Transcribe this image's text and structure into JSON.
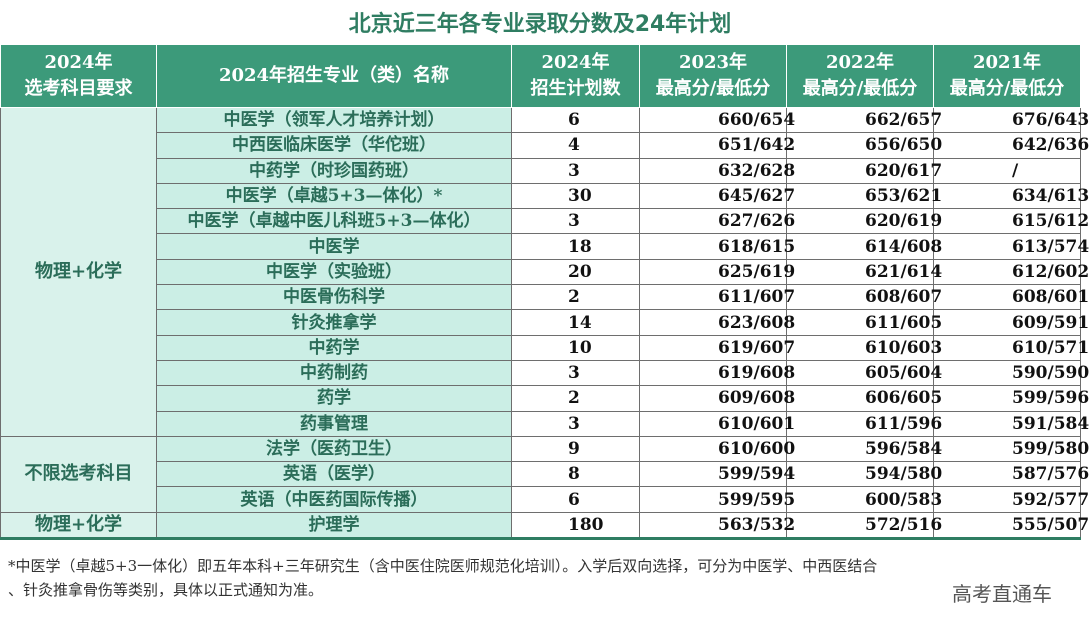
{
  "title": "北京近三年各专业录取分数及24年计划",
  "headers": {
    "col1": [
      "2024年",
      "选考科目要求"
    ],
    "col2": "2024年招生专业（类）名称",
    "col3": [
      "2024年",
      "招生计划数"
    ],
    "col4": [
      "2023年",
      "最高分/最低分"
    ],
    "col5": [
      "2022年",
      "最高分/最低分"
    ],
    "col6": [
      "2021年",
      "最高分/最低分"
    ]
  },
  "groups": [
    "物理+化学",
    "不限选考科目",
    "物理+化学"
  ],
  "rows": [
    {
      "major": "中医学（领军人才培养计划）",
      "plan": "6",
      "s2023": "660/654",
      "s2022": "662/657",
      "s2021": "676/643"
    },
    {
      "major": "中西医临床医学（华佗班）",
      "plan": "4",
      "s2023": "651/642",
      "s2022": "656/650",
      "s2021": "642/636"
    },
    {
      "major": "中药学（时珍国药班）",
      "plan": "3",
      "s2023": "632/628",
      "s2022": "620/617",
      "s2021": "/"
    },
    {
      "major": "中医学（卓越5+3—体化）*",
      "plan": "30",
      "s2023": "645/627",
      "s2022": "653/621",
      "s2021": "634/613"
    },
    {
      "major": "中医学（卓越中医儿科班5+3—体化）",
      "plan": "3",
      "s2023": "627/626",
      "s2022": "620/619",
      "s2021": "615/612"
    },
    {
      "major": "中医学",
      "plan": "18",
      "s2023": "618/615",
      "s2022": "614/608",
      "s2021": "613/574"
    },
    {
      "major": "中医学（实验班）",
      "plan": "20",
      "s2023": "625/619",
      "s2022": "621/614",
      "s2021": "612/602"
    },
    {
      "major": "中医骨伤科学",
      "plan": "2",
      "s2023": "611/607",
      "s2022": "608/607",
      "s2021": "608/601"
    },
    {
      "major": "针灸推拿学",
      "plan": "14",
      "s2023": "623/608",
      "s2022": "611/605",
      "s2021": "609/591"
    },
    {
      "major": "中药学",
      "plan": "10",
      "s2023": "619/607",
      "s2022": "610/603",
      "s2021": "610/571"
    },
    {
      "major": "中药制药",
      "plan": "3",
      "s2023": "619/608",
      "s2022": "605/604",
      "s2021": "590/590"
    },
    {
      "major": "药学",
      "plan": "2",
      "s2023": "609/608",
      "s2022": "606/605",
      "s2021": "599/596"
    },
    {
      "major": "药事管理",
      "plan": "3",
      "s2023": "610/601",
      "s2022": "611/596",
      "s2021": "591/584"
    },
    {
      "major": "法学（医药卫生）",
      "plan": "9",
      "s2023": "610/600",
      "s2022": "596/584",
      "s2021": "599/580"
    },
    {
      "major": "英语（医学）",
      "plan": "8",
      "s2023": "599/594",
      "s2022": "594/580",
      "s2021": "587/576"
    },
    {
      "major": "英语（中医药国际传播）",
      "plan": "6",
      "s2023": "599/595",
      "s2022": "600/583",
      "s2021": "592/577"
    },
    {
      "major": "护理学",
      "plan": "180",
      "s2023": "563/532",
      "s2022": "572/516",
      "s2021": "555/507"
    }
  ],
  "note_line1": "*中医学（卓越5+3一体化）即五年本科+三年研究生（含中医住院医师规范化培训）。入学后双向选择，可分为中医学、中西医结合",
  "note_line2": "、针灸推拿骨伤等类别，具体以正式通知为准。",
  "watermark": "高考直通车"
}
